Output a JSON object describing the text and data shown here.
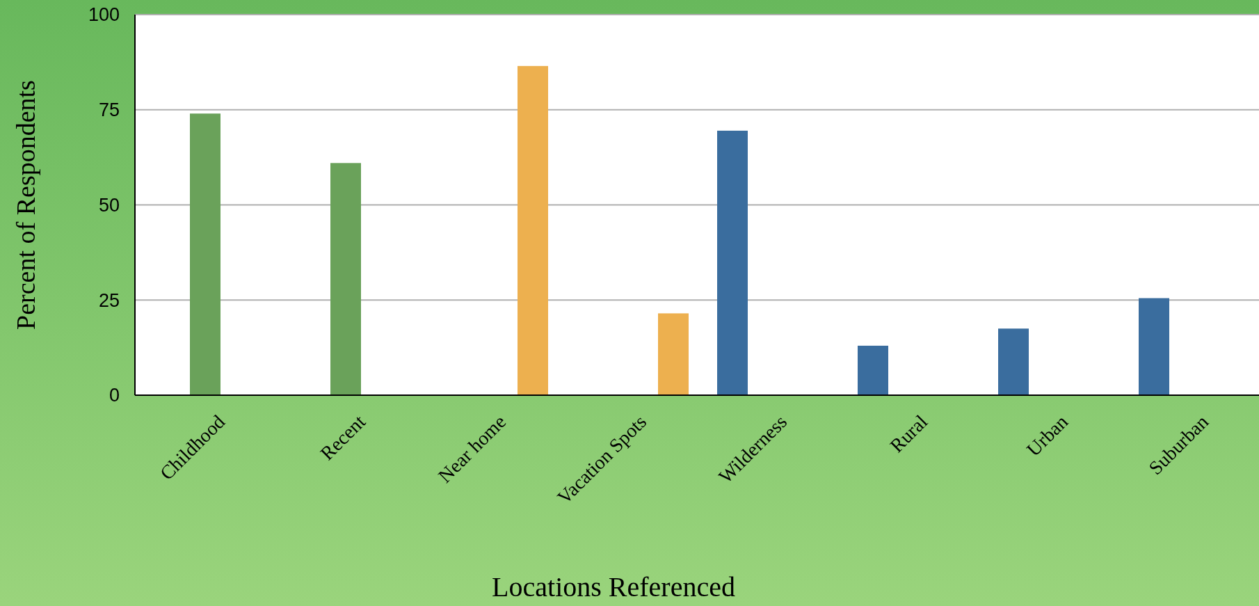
{
  "chart_data": {
    "type": "bar",
    "xlabel": "Locations Referenced",
    "ylabel": "Percent of Respondents",
    "categories": [
      "Childhood",
      "Recent",
      "Near home",
      "Vacation Spots",
      "Wilderness",
      "Rural",
      "Urban",
      "Suburban"
    ],
    "series": [
      {
        "color": "#6aa25a",
        "values": [
          74,
          61,
          null,
          null,
          null,
          null,
          null,
          null
        ]
      },
      {
        "color": "#edb04f",
        "values": [
          null,
          null,
          86.5,
          21.5,
          null,
          null,
          null,
          null
        ]
      },
      {
        "color": "#3a6d9e",
        "values": [
          null,
          null,
          null,
          null,
          69.5,
          13,
          17.5,
          25.5
        ]
      }
    ],
    "ylim": [
      0,
      100
    ],
    "yticks": [
      0,
      25,
      50,
      75,
      100
    ],
    "grid": "y"
  }
}
